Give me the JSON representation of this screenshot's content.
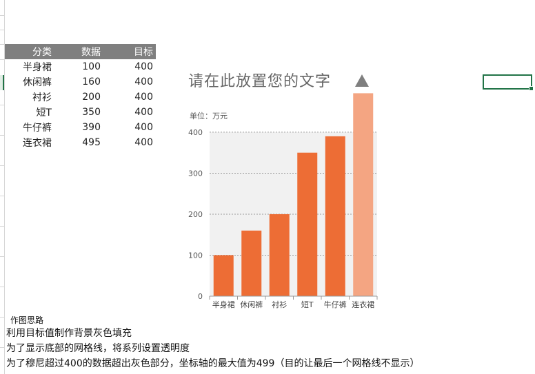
{
  "table": {
    "headers": [
      "分类",
      "数据",
      "目标"
    ],
    "rows": [
      [
        "半身裙",
        "100",
        "400"
      ],
      [
        "休闲裤",
        "160",
        "400"
      ],
      [
        "衬衫",
        "200",
        "400"
      ],
      [
        "短T",
        "350",
        "400"
      ],
      [
        "牛仔裤",
        "390",
        "400"
      ],
      [
        "连衣裙",
        "495",
        "400"
      ]
    ]
  },
  "chart_title": "请在此放置您的文字",
  "chart_unit": "单位：万元",
  "colors": {
    "bar": "#ed6d35",
    "bar_highlight": "#f4a582",
    "plot_bg": "#f1f1f1",
    "header_bg": "#7f7f7f",
    "accent": "#217346"
  },
  "chart_data": {
    "type": "bar",
    "categories": [
      "半身裙",
      "休闲裤",
      "衬衫",
      "短T",
      "牛仔裤",
      "连衣裙"
    ],
    "series": [
      {
        "values": [
          100,
          160,
          200,
          350,
          390,
          495
        ]
      },
      {
        "values": [
          400,
          400,
          400,
          400,
          400,
          400
        ]
      }
    ],
    "y_ticks": [
      0,
      100,
      200,
      300,
      400
    ],
    "ylim": [
      0,
      499
    ],
    "title": "请在此放置您的文字",
    "ylabel": "单位：万元",
    "grid": "dotted horizontal",
    "legend": "none"
  },
  "notes": {
    "heading": "作图思路",
    "lines": [
      "利用目标值制作背景灰色填充",
      "为了显示底部的网格线，将系列设置透明度",
      "为了穆尼超过400的数据超出灰色部分，坐标轴的最大值为499（目的让最后一个网格线不显示）"
    ]
  }
}
